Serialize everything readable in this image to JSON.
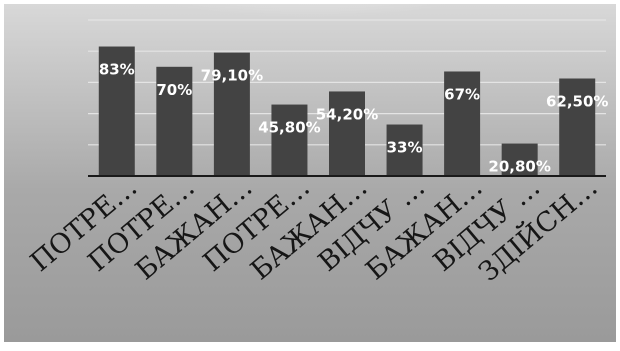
{
  "chart_data": {
    "type": "bar",
    "categories": [
      "ПОТРЕ…",
      "ПОТРЕ…",
      "БАЖАН…",
      "ПОТРЕ…",
      "БАЖАН…",
      "ВІДЧУ …",
      "БАЖАН…",
      "ВІДЧУ …",
      "ЗДІЙСН…"
    ],
    "values": [
      83,
      70,
      79.1,
      45.8,
      54.2,
      33,
      67,
      20.8,
      62.5
    ],
    "data_labels": [
      "83%",
      "70%",
      "79,10%",
      "45,80%",
      "54,20%",
      "33%",
      "67%",
      "20,80%",
      "62,50%"
    ],
    "ylim": [
      0,
      100
    ],
    "grid": true,
    "legend": "none",
    "colors": {
      "bar": "#434343",
      "axis": "#1a1a1a",
      "grid": "#e4e4e4",
      "label": "#ffffff",
      "category_text": "#161616"
    }
  }
}
